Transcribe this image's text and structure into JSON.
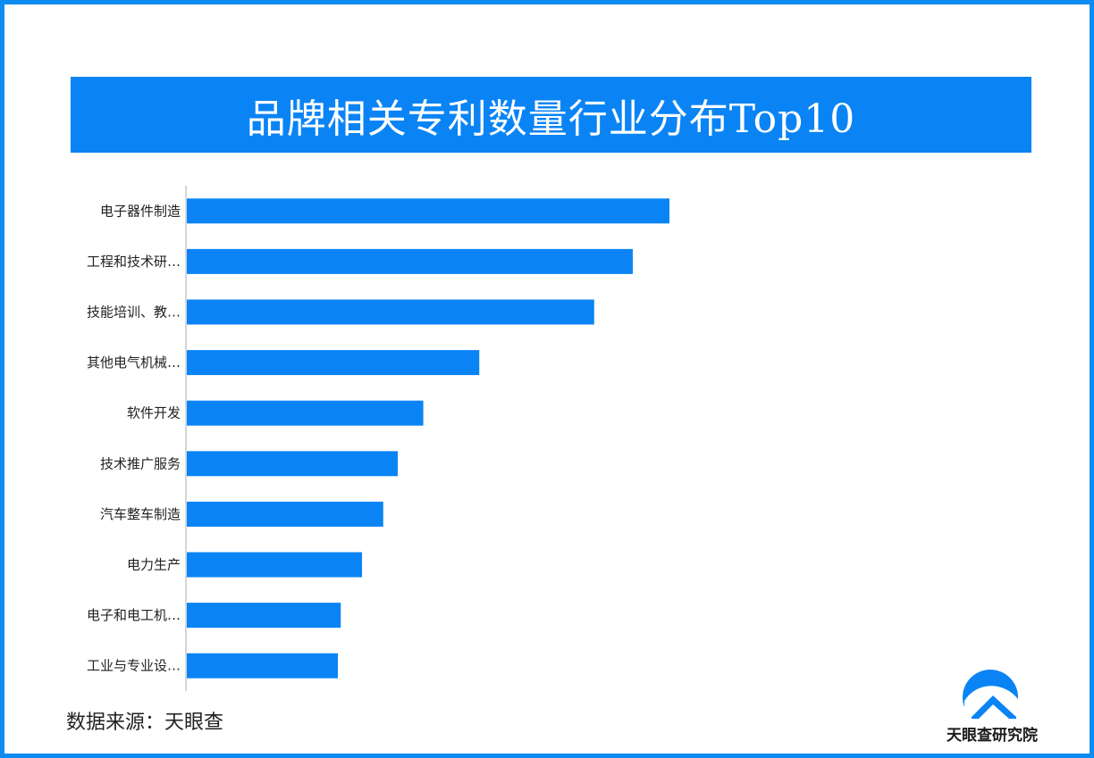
{
  "title": "品牌相关专利数量行业分布Top10",
  "source": "数据来源：天眼查",
  "logo": {
    "text": "天眼查研究院",
    "icon": "tianyancha-logo-icon"
  },
  "colors": {
    "bar": "#0a84f5",
    "frame": "#0f8cf2",
    "axis": "#c8c8c8"
  },
  "chart_data": {
    "type": "bar",
    "orientation": "horizontal",
    "categories": [
      "电子器件制造",
      "工程和技术研…",
      "技能培训、教…",
      "其他电气机械…",
      "软件开发",
      "技术推广服务",
      "汽车整车制造",
      "电力生产",
      "电子和电工机…",
      "工业与专业设…"
    ],
    "values": [
      100,
      92.4,
      84.4,
      60.6,
      49,
      43.7,
      40.7,
      36.3,
      31.9,
      31.3
    ],
    "xlim": [
      0,
      160
    ],
    "grid": false,
    "legend": "none"
  }
}
